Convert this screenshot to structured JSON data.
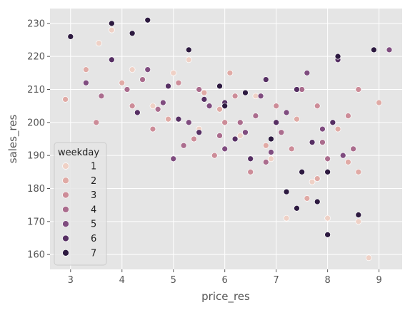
{
  "chart_data": {
    "type": "scatter",
    "xlabel": "price_res",
    "ylabel": "sales_res",
    "xlim": [
      2.6,
      9.45
    ],
    "ylim": [
      155.5,
      234.5
    ],
    "xticks": [
      3,
      4,
      5,
      6,
      7,
      8,
      9
    ],
    "yticks": [
      160,
      170,
      180,
      190,
      200,
      210,
      220,
      230
    ],
    "grid": true,
    "legend": {
      "title": "weekday",
      "placement": "lower-left"
    },
    "colors": {
      "1": "#efd1c6",
      "2": "#e0aaa5",
      "3": "#cc8c98",
      "4": "#aa6c8d",
      "5": "#7f4c7f",
      "6": "#562f63",
      "7": "#2d1a40"
    },
    "series": [
      {
        "name": "1",
        "points": [
          [
            3.55,
            224
          ],
          [
            3.8,
            228
          ],
          [
            4.2,
            216
          ],
          [
            5.3,
            219
          ],
          [
            8.6,
            170
          ],
          [
            8.8,
            159
          ],
          [
            8.0,
            171
          ],
          [
            5.0,
            215
          ],
          [
            6.6,
            208
          ],
          [
            7.7,
            182
          ],
          [
            4.6,
            205
          ],
          [
            5.5,
            198
          ],
          [
            6.3,
            196
          ],
          [
            7.2,
            171
          ],
          [
            6.9,
            189
          ]
        ]
      },
      {
        "name": "2",
        "points": [
          [
            2.9,
            207
          ],
          [
            3.3,
            216
          ],
          [
            4.0,
            212
          ],
          [
            8.4,
            188
          ],
          [
            8.6,
            185
          ],
          [
            9.0,
            206
          ],
          [
            7.6,
            177
          ],
          [
            6.1,
            215
          ],
          [
            5.9,
            204
          ],
          [
            7.4,
            201
          ],
          [
            8.2,
            198
          ],
          [
            4.9,
            201
          ],
          [
            5.6,
            209
          ],
          [
            6.8,
            193
          ],
          [
            7.8,
            183
          ]
        ]
      },
      {
        "name": "3",
        "points": [
          [
            3.5,
            200
          ],
          [
            4.2,
            205
          ],
          [
            5.1,
            212
          ],
          [
            6.2,
            208
          ],
          [
            7.0,
            205
          ],
          [
            8.1,
            200
          ],
          [
            8.6,
            210
          ],
          [
            7.8,
            205
          ],
          [
            6.5,
            185
          ],
          [
            5.4,
            195
          ],
          [
            4.6,
            198
          ],
          [
            7.3,
            192
          ],
          [
            6.0,
            200
          ],
          [
            8.4,
            202
          ],
          [
            5.8,
            190
          ]
        ]
      },
      {
        "name": "4",
        "points": [
          [
            3.6,
            208
          ],
          [
            4.4,
            213
          ],
          [
            5.5,
            210
          ],
          [
            6.3,
            200
          ],
          [
            7.1,
            197
          ],
          [
            7.9,
            194
          ],
          [
            8.5,
            192
          ],
          [
            6.8,
            188
          ],
          [
            5.2,
            193
          ],
          [
            4.7,
            204
          ],
          [
            6.6,
            202
          ],
          [
            7.5,
            210
          ],
          [
            5.9,
            196
          ],
          [
            4.1,
            210
          ],
          [
            8.0,
            189
          ]
        ]
      },
      {
        "name": "5",
        "points": [
          [
            3.3,
            212
          ],
          [
            4.5,
            216
          ],
          [
            5.0,
            189
          ],
          [
            6.0,
            192
          ],
          [
            6.9,
            191
          ],
          [
            7.6,
            215
          ],
          [
            9.2,
            222
          ],
          [
            8.3,
            190
          ],
          [
            5.7,
            205
          ],
          [
            6.4,
            197
          ],
          [
            7.2,
            203
          ],
          [
            4.8,
            206
          ],
          [
            5.3,
            200
          ],
          [
            6.7,
            208
          ],
          [
            7.9,
            198
          ]
        ]
      },
      {
        "name": "6",
        "points": [
          [
            3.8,
            219
          ],
          [
            4.3,
            203
          ],
          [
            5.6,
            207
          ],
          [
            6.2,
            195
          ],
          [
            7.4,
            210
          ],
          [
            8.2,
            219
          ],
          [
            7.7,
            194
          ],
          [
            6.5,
            189
          ],
          [
            5.1,
            201
          ],
          [
            4.9,
            211
          ],
          [
            6.0,
            206
          ],
          [
            7.0,
            200
          ],
          [
            8.1,
            200
          ],
          [
            6.8,
            213
          ],
          [
            5.5,
            197
          ]
        ]
      },
      {
        "name": "7",
        "points": [
          [
            3.0,
            226
          ],
          [
            3.8,
            230
          ],
          [
            4.5,
            231
          ],
          [
            4.2,
            227
          ],
          [
            5.3,
            222
          ],
          [
            8.0,
            166
          ],
          [
            8.6,
            172
          ],
          [
            7.2,
            179
          ],
          [
            7.4,
            174
          ],
          [
            8.0,
            185
          ],
          [
            8.9,
            222
          ],
          [
            7.5,
            185
          ],
          [
            6.0,
            205
          ],
          [
            5.9,
            211
          ],
          [
            7.8,
            176
          ],
          [
            8.2,
            220
          ],
          [
            6.4,
            209
          ],
          [
            6.9,
            195
          ]
        ]
      }
    ]
  }
}
